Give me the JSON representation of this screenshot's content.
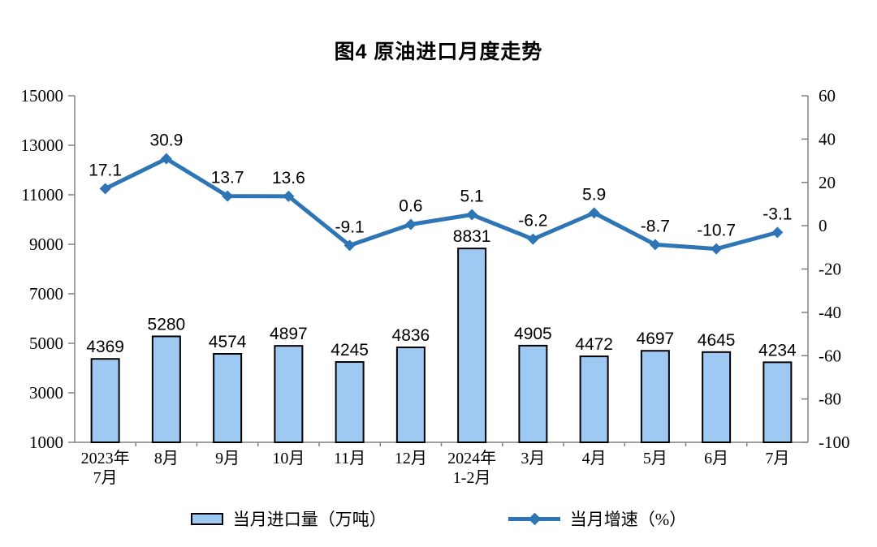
{
  "chart": {
    "title": "图4 原油进口月度走势"
  },
  "legend": {
    "bar_label": "当月进口量（万吨）",
    "line_label": "当月增速（%）"
  },
  "chart_data": {
    "type": "bar",
    "subtype": "bar+line combo, dual axis",
    "title": "图4 原油进口月度走势",
    "categories": [
      [
        "2023年",
        "7月"
      ],
      [
        "8月"
      ],
      [
        "9月"
      ],
      [
        "10月"
      ],
      [
        "11月"
      ],
      [
        "12月"
      ],
      [
        "2024年",
        "1-2月"
      ],
      [
        "3月"
      ],
      [
        "4月"
      ],
      [
        "5月"
      ],
      [
        "6月"
      ],
      [
        "7月"
      ]
    ],
    "series": [
      {
        "name": "当月进口量（万吨）",
        "kind": "bar",
        "axis": "left",
        "values": [
          4369,
          5280,
          4574,
          4897,
          4245,
          4836,
          8831,
          4905,
          4472,
          4697,
          4645,
          4234
        ]
      },
      {
        "name": "当月增速（%）",
        "kind": "line",
        "axis": "right",
        "values": [
          17.1,
          30.9,
          13.7,
          13.6,
          -9.1,
          0.6,
          5.1,
          -6.2,
          5.9,
          -8.7,
          -10.7,
          -3.1
        ]
      }
    ],
    "left_axis": {
      "min": 1000,
      "max": 15000,
      "ticks": [
        15000,
        13000,
        11000,
        9000,
        7000,
        5000,
        3000,
        1000
      ]
    },
    "right_axis": {
      "min": -100,
      "max": 60,
      "ticks": [
        60,
        40,
        20,
        0,
        -20,
        -40,
        -60,
        -80,
        -100
      ]
    },
    "grid": false,
    "legend_position": "bottom",
    "colors": {
      "bar_fill": "#9DC9F3",
      "bar_stroke": "#000000",
      "line": "#2E75B6",
      "axis": "#808080",
      "text": "#000000"
    }
  }
}
